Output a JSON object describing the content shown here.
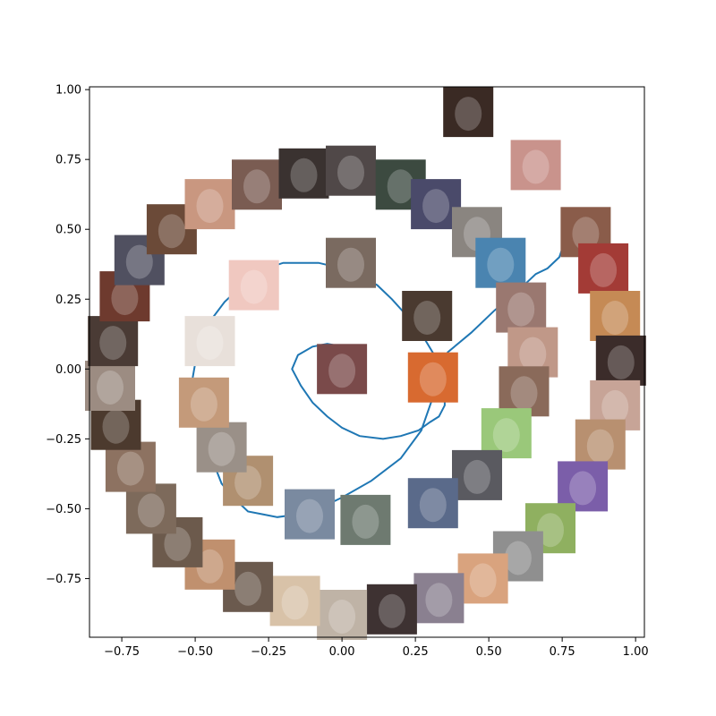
{
  "chart_data": {
    "type": "scatter",
    "title": "",
    "xlabel": "",
    "ylabel": "",
    "xlim": [
      -0.86,
      1.03
    ],
    "ylim": [
      -0.96,
      1.01
    ],
    "grid": false,
    "legend": "none",
    "xticks": [
      "−0.75",
      "−0.50",
      "−0.25",
      "0.00",
      "0.25",
      "0.50",
      "0.75",
      "1.00"
    ],
    "yticks": [
      "−0.75",
      "−0.50",
      "−0.25",
      "0.00",
      "0.25",
      "0.50",
      "0.75",
      "1.00"
    ],
    "xtick_values": [
      -0.75,
      -0.5,
      -0.25,
      0.0,
      0.25,
      0.5,
      0.75,
      1.0
    ],
    "ytick_values": [
      -0.75,
      -0.5,
      -0.25,
      0.0,
      0.25,
      0.5,
      0.75,
      1.0
    ],
    "line_color": "#1f77b4",
    "spiral_line": {
      "x": [
        0.8,
        0.78,
        0.76,
        0.74,
        0.7,
        0.66,
        0.6,
        0.52,
        0.44,
        0.36,
        0.33,
        0.31,
        0.27,
        0.2,
        0.1,
        0.0,
        -0.06,
        -0.15,
        -0.22,
        -0.27,
        -0.32,
        -0.37,
        -0.41,
        -0.44,
        -0.47,
        -0.49,
        -0.51,
        -0.5,
        -0.48,
        -0.45,
        -0.4,
        -0.33,
        -0.28,
        -0.23,
        -0.2,
        -0.17,
        -0.13,
        -0.08,
        0.0,
        0.07,
        0.12,
        0.17,
        0.23,
        0.28,
        0.32,
        0.34,
        0.35,
        0.35,
        0.33,
        0.3,
        0.26,
        0.2,
        0.14,
        0.06,
        0.0,
        -0.05,
        -0.1,
        -0.14,
        -0.17,
        -0.15,
        -0.1,
        -0.05,
        0.0
      ],
      "y": [
        0.57,
        0.52,
        0.46,
        0.4,
        0.36,
        0.34,
        0.28,
        0.21,
        0.13,
        0.06,
        -0.02,
        -0.1,
        -0.22,
        -0.32,
        -0.4,
        -0.46,
        -0.49,
        -0.52,
        -0.53,
        -0.52,
        -0.51,
        -0.46,
        -0.41,
        -0.33,
        -0.24,
        -0.14,
        -0.04,
        0.02,
        0.11,
        0.17,
        0.24,
        0.31,
        0.35,
        0.37,
        0.38,
        0.38,
        0.38,
        0.38,
        0.36,
        0.33,
        0.3,
        0.25,
        0.18,
        0.11,
        0.04,
        -0.03,
        -0.08,
        -0.13,
        -0.17,
        -0.19,
        -0.22,
        -0.24,
        -0.25,
        -0.24,
        -0.21,
        -0.17,
        -0.12,
        -0.06,
        0.0,
        0.05,
        0.08,
        0.09,
        0.08
      ]
    },
    "points": [
      {
        "x": 0.43,
        "y": 0.92,
        "color": "#3a2a24"
      },
      {
        "x": 0.66,
        "y": 0.73,
        "color": "#c9938c"
      },
      {
        "x": 0.83,
        "y": 0.49,
        "color": "#8a5c4a"
      },
      {
        "x": 0.89,
        "y": 0.36,
        "color": "#a33b36"
      },
      {
        "x": 0.93,
        "y": 0.19,
        "color": "#c58a55"
      },
      {
        "x": 0.95,
        "y": 0.03,
        "color": "#3b2c2a"
      },
      {
        "x": 0.93,
        "y": -0.13,
        "color": "#c7a497"
      },
      {
        "x": 0.88,
        "y": -0.27,
        "color": "#b89070"
      },
      {
        "x": 0.82,
        "y": -0.42,
        "color": "#7b5ea9"
      },
      {
        "x": 0.71,
        "y": -0.57,
        "color": "#8fb060"
      },
      {
        "x": 0.6,
        "y": -0.67,
        "color": "#8f8f8f"
      },
      {
        "x": 0.48,
        "y": -0.75,
        "color": "#d9a37e"
      },
      {
        "x": 0.33,
        "y": -0.82,
        "color": "#8a8090"
      },
      {
        "x": 0.17,
        "y": -0.86,
        "color": "#3e3232"
      },
      {
        "x": 0.0,
        "y": -0.88,
        "color": "#bfb3a6"
      },
      {
        "x": -0.16,
        "y": -0.83,
        "color": "#d8c2a8"
      },
      {
        "x": -0.32,
        "y": -0.78,
        "color": "#6b5a4e"
      },
      {
        "x": -0.45,
        "y": -0.7,
        "color": "#c0906e"
      },
      {
        "x": -0.56,
        "y": -0.62,
        "color": "#6c5a4c"
      },
      {
        "x": -0.65,
        "y": -0.5,
        "color": "#7d6a5b"
      },
      {
        "x": -0.72,
        "y": -0.35,
        "color": "#8d7261"
      },
      {
        "x": -0.77,
        "y": -0.2,
        "color": "#4c3a2e"
      },
      {
        "x": -0.79,
        "y": -0.06,
        "color": "#9c8c82"
      },
      {
        "x": -0.78,
        "y": 0.1,
        "color": "#4a3b35"
      },
      {
        "x": -0.74,
        "y": 0.26,
        "color": "#6e3a2e"
      },
      {
        "x": -0.69,
        "y": 0.39,
        "color": "#505060"
      },
      {
        "x": -0.58,
        "y": 0.5,
        "color": "#6b4a38"
      },
      {
        "x": -0.45,
        "y": 0.59,
        "color": "#c99780"
      },
      {
        "x": -0.29,
        "y": 0.66,
        "color": "#7a5c52"
      },
      {
        "x": -0.13,
        "y": 0.7,
        "color": "#3a3230"
      },
      {
        "x": 0.03,
        "y": 0.71,
        "color": "#504848"
      },
      {
        "x": 0.2,
        "y": 0.66,
        "color": "#3c4a40"
      },
      {
        "x": 0.32,
        "y": 0.59,
        "color": "#4a4a6a"
      },
      {
        "x": 0.46,
        "y": 0.49,
        "color": "#8a8580"
      },
      {
        "x": 0.54,
        "y": 0.38,
        "color": "#4a84b0"
      },
      {
        "x": 0.61,
        "y": 0.22,
        "color": "#9a7870"
      },
      {
        "x": 0.65,
        "y": 0.06,
        "color": "#c09888"
      },
      {
        "x": 0.62,
        "y": -0.08,
        "color": "#8a6a5a"
      },
      {
        "x": 0.56,
        "y": -0.23,
        "color": "#9ac87a"
      },
      {
        "x": 0.46,
        "y": -0.38,
        "color": "#5a5a60"
      },
      {
        "x": 0.31,
        "y": -0.48,
        "color": "#5a6a8a"
      },
      {
        "x": 0.08,
        "y": -0.54,
        "color": "#6e7a70"
      },
      {
        "x": -0.11,
        "y": -0.52,
        "color": "#7a8aa0"
      },
      {
        "x": -0.32,
        "y": -0.4,
        "color": "#b09070"
      },
      {
        "x": -0.41,
        "y": -0.28,
        "color": "#9a9088"
      },
      {
        "x": -0.47,
        "y": -0.12,
        "color": "#c49a7a"
      },
      {
        "x": -0.45,
        "y": 0.1,
        "color": "#e8e0da"
      },
      {
        "x": -0.3,
        "y": 0.3,
        "color": "#f0c8c0"
      },
      {
        "x": 0.03,
        "y": 0.38,
        "color": "#7a6a60"
      },
      {
        "x": 0.29,
        "y": 0.19,
        "color": "#4a3a30"
      },
      {
        "x": 0.31,
        "y": -0.03,
        "color": "#d86a30"
      },
      {
        "x": 0.0,
        "y": 0.0,
        "color": "#7a4a4a"
      }
    ]
  }
}
